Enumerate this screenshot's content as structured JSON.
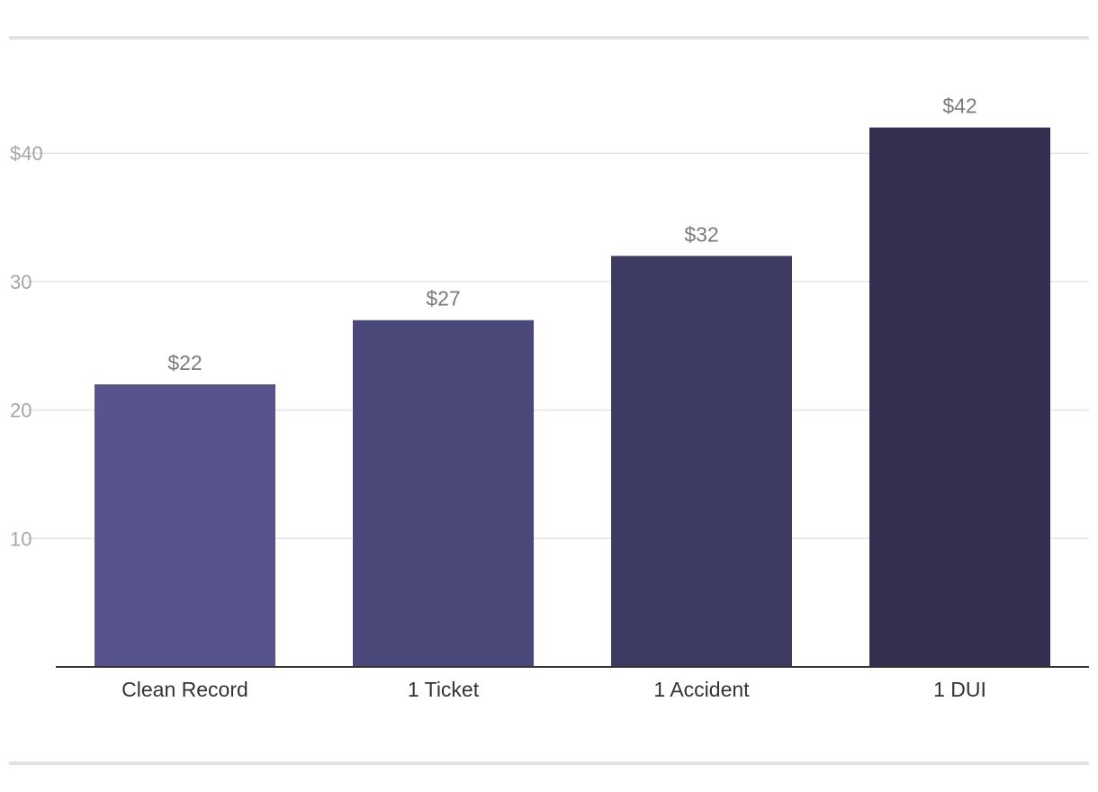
{
  "chart_data": {
    "type": "bar",
    "categories": [
      "Clean Record",
      "1 Ticket",
      "1 Accident",
      "1 DUI"
    ],
    "values": [
      22,
      27,
      32,
      42
    ],
    "value_labels": [
      "$22",
      "$27",
      "$32",
      "$42"
    ],
    "bar_colors": [
      "#57548d",
      "#4a4879",
      "#3e3b63",
      "#332f4f"
    ],
    "yticks": [
      10,
      20,
      30,
      40
    ],
    "ytick_labels": [
      "10",
      "20",
      "30",
      "$40"
    ],
    "ylim": [
      0,
      46
    ],
    "title": "",
    "xlabel": "",
    "ylabel": "",
    "grid": true
  }
}
